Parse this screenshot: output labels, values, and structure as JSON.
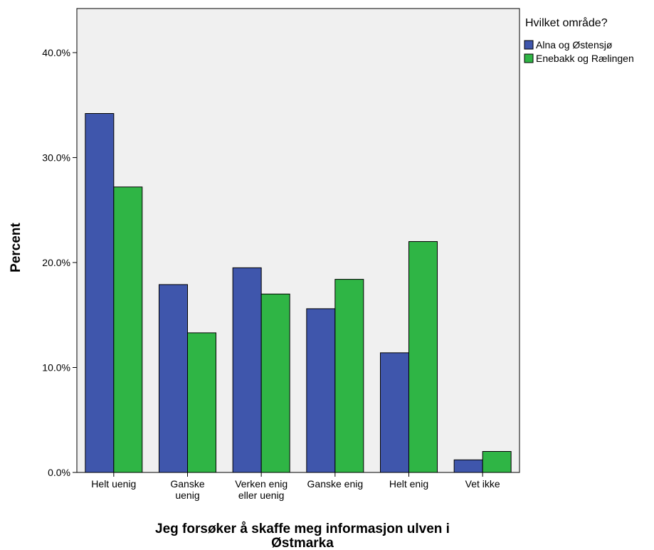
{
  "chart_data": {
    "type": "bar",
    "title": "",
    "xlabel": "Jeg forsøker å skaffe meg informasjon ulven i Østmarka",
    "ylabel": "Percent",
    "categories": [
      "Helt uenig",
      "Ganske uenig",
      "Verken enig eller uenig",
      "Ganske enig",
      "Helt enig",
      "Vet ikke"
    ],
    "category_lines": [
      [
        "Helt uenig"
      ],
      [
        "Ganske",
        "uenig"
      ],
      [
        "Verken enig",
        "eller uenig"
      ],
      [
        "Ganske enig"
      ],
      [
        "Helt enig"
      ],
      [
        "Vet ikke"
      ]
    ],
    "series": [
      {
        "name": "Alna og Østensjø",
        "color": "#3f56ac",
        "values": [
          34.2,
          17.9,
          19.5,
          15.6,
          11.4,
          1.2
        ]
      },
      {
        "name": "Enebakk og Rælingen",
        "color": "#2fb545",
        "values": [
          27.2,
          13.3,
          17.0,
          18.4,
          22.0,
          2.0
        ]
      }
    ],
    "ylim": [
      0,
      44.2
    ],
    "yticks": [
      0,
      10,
      20,
      30,
      40
    ],
    "ytick_labels": [
      "0.0%",
      "10.0%",
      "20.0%",
      "30.0%",
      "40.0%"
    ],
    "legend": {
      "title": "Hvilket område?",
      "position": "top-right"
    },
    "plot_background": "#f0f0f0",
    "grid": false
  }
}
